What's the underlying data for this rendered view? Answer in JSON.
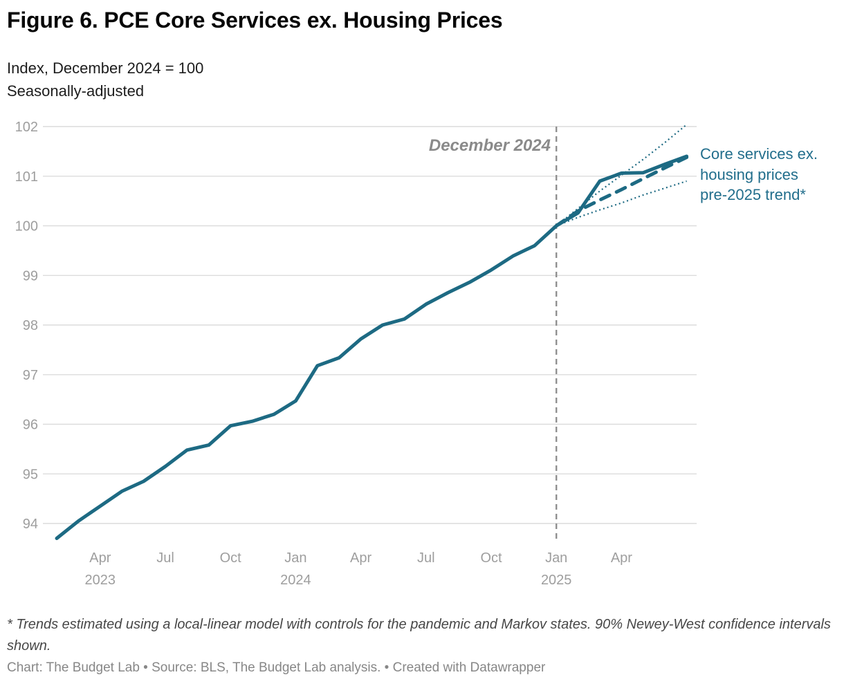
{
  "header": {
    "title": "Figure 6. PCE Core Services ex. Housing Prices",
    "subtitle_line1": "Index, December 2024 = 100",
    "subtitle_line2": "Seasonally-adjusted"
  },
  "chart_data": {
    "type": "line",
    "title": "Figure 6. PCE Core Services ex. Housing Prices",
    "ylabel": "Index, December 2024 = 100, seasonally-adjusted",
    "xlabel": "",
    "ylim": [
      93.5,
      102.1
    ],
    "grid": "horizontal",
    "legend_position": "right-inline-label",
    "y_ticks": [
      94,
      95,
      96,
      97,
      98,
      99,
      100,
      101,
      102
    ],
    "x_months": [
      "Jan 2023",
      "Feb 2023",
      "Mar 2023",
      "Apr 2023",
      "May 2023",
      "Jun 2023",
      "Jul 2023",
      "Aug 2023",
      "Sep 2023",
      "Oct 2023",
      "Nov 2023",
      "Dec 2023",
      "Jan 2024",
      "Feb 2024",
      "Mar 2024",
      "Apr 2024",
      "May 2024",
      "Jun 2024",
      "Jul 2024",
      "Aug 2024",
      "Sep 2024",
      "Oct 2024",
      "Nov 2024",
      "Dec 2024",
      "Jan 2025",
      "Feb 2025",
      "Mar 2025",
      "Apr 2025",
      "May 2025",
      "Jun 2025"
    ],
    "x_ticks": [
      {
        "label": "Apr",
        "year": "2023",
        "month_index": 2
      },
      {
        "label": "Jul",
        "month_index": 5
      },
      {
        "label": "Oct",
        "month_index": 8
      },
      {
        "label": "Jan",
        "year": "2024",
        "month_index": 11
      },
      {
        "label": "Apr",
        "month_index": 14
      },
      {
        "label": "Jul",
        "month_index": 17
      },
      {
        "label": "Oct",
        "month_index": 20
      },
      {
        "label": "Jan",
        "year": "2025",
        "month_index": 23
      },
      {
        "label": "Apr",
        "month_index": 26
      }
    ],
    "series": [
      {
        "name": "Core services ex. housing prices",
        "style": "solid",
        "start_index": 0,
        "values": [
          93.7,
          94.05,
          94.35,
          94.65,
          94.85,
          95.15,
          95.48,
          95.58,
          95.97,
          96.06,
          96.2,
          96.47,
          97.18,
          97.34,
          97.72,
          98.0,
          98.12,
          98.42,
          98.65,
          98.86,
          99.11,
          99.39,
          99.6,
          100.0,
          100.26,
          100.9,
          101.06,
          101.07,
          101.24,
          101.4
        ]
      },
      {
        "name": "Pre-2025 trend",
        "style": "dashed",
        "start_index": 23,
        "values": [
          100.0,
          100.3,
          100.52,
          100.73,
          100.95,
          101.17,
          101.38
        ]
      },
      {
        "name": "90% Newey-West confidence interval (upper)",
        "style": "dotted",
        "start_index": 23,
        "values": [
          100.0,
          100.35,
          100.7,
          101.02,
          101.34,
          101.68,
          102.04
        ]
      },
      {
        "name": "90% Newey-West confidence interval (lower)",
        "style": "dotted",
        "start_index": 23,
        "values": [
          100.0,
          100.17,
          100.32,
          100.46,
          100.62,
          100.76,
          100.9
        ]
      }
    ],
    "annotation": {
      "text": "December 2024",
      "month_index": 23
    },
    "line_label": {
      "line1": "Core services ex.",
      "line2": "housing prices",
      "line3": "pre-2025 trend*"
    },
    "colors": {
      "line": "#1d6a83",
      "label_text": "#226e8c",
      "grid": "#dcdcdc",
      "axis_text": "#9e9e9e",
      "annotation_text": "#8a8a8a",
      "annotation_line": "#909090",
      "background": "#ffffff"
    }
  },
  "footnote": {
    "text": "* Trends estimated using a local-linear model with controls for the pandemic and Markov states. 90% Newey-West confidence intervals shown."
  },
  "credits": {
    "text": "Chart: The Budget Lab • Source: BLS, The Budget Lab analysis. • Created with Datawrapper"
  }
}
